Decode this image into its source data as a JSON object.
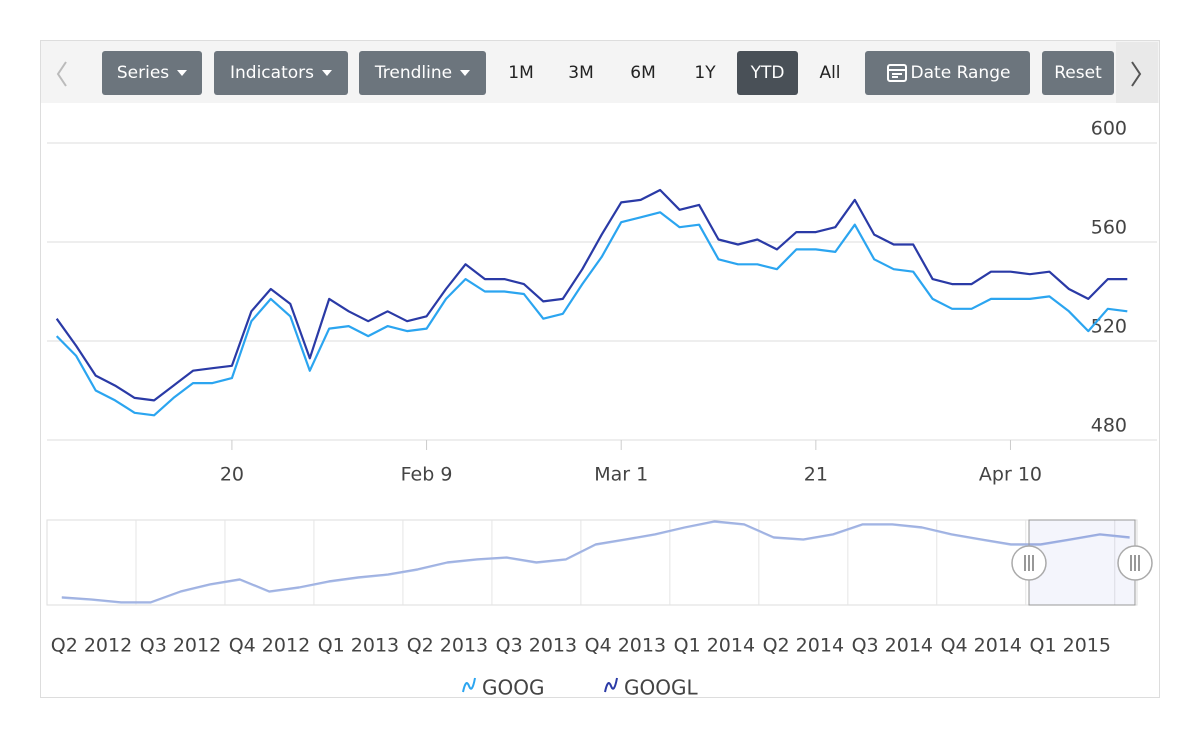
{
  "toolbar": {
    "buttons": [
      "Series",
      "Indicators",
      "Trendline",
      "1M",
      "3M",
      "6M",
      "1Y",
      "YTD",
      "All",
      "Date Range",
      "Reset"
    ]
  },
  "chart_data": [
    {
      "type": "line",
      "categories": [
        null,
        null,
        null,
        null,
        null,
        null,
        null,
        null,
        null,
        "20",
        null,
        null,
        null,
        null,
        null,
        null,
        null,
        null,
        null,
        "Feb 9",
        null,
        null,
        null,
        null,
        null,
        null,
        null,
        null,
        null,
        "Mar 1",
        null,
        null,
        null,
        null,
        null,
        null,
        null,
        null,
        null,
        "21",
        null,
        null,
        null,
        null,
        null,
        null,
        null,
        null,
        null,
        "Apr 10",
        null,
        null,
        null,
        null,
        null,
        null
      ],
      "series": [
        {
          "name": "GOOG",
          "color": "#2ba5f0",
          "values": [
            522,
            514,
            500,
            496,
            491,
            490,
            497,
            503,
            503,
            505,
            528,
            537,
            530,
            508,
            525,
            526,
            522,
            526,
            524,
            525,
            537,
            545,
            540,
            540,
            539,
            529,
            531,
            543,
            554,
            568,
            570,
            572,
            566,
            567,
            553,
            551,
            551,
            549,
            557,
            557,
            556,
            567,
            553,
            549,
            548,
            537,
            533,
            533,
            537,
            537,
            537,
            538,
            532,
            524,
            533,
            532
          ]
        },
        {
          "name": "GOOGL",
          "color": "#2a3aa6",
          "values": [
            529,
            518,
            506,
            502,
            497,
            496,
            502,
            508,
            509,
            510,
            532,
            541,
            535,
            513,
            537,
            532,
            528,
            532,
            528,
            530,
            541,
            551,
            545,
            545,
            543,
            536,
            537,
            549,
            563,
            576,
            577,
            581,
            573,
            575,
            561,
            559,
            561,
            557,
            564,
            564,
            566,
            577,
            563,
            559,
            559,
            545,
            543,
            543,
            548,
            548,
            547,
            548,
            541,
            537,
            545,
            545
          ]
        }
      ],
      "ylim": [
        480,
        600
      ],
      "yticks": [
        480,
        520,
        560,
        600
      ],
      "grid": true,
      "legend": "bottom"
    },
    {
      "type": "line",
      "categories": [
        null,
        "Q2 2012",
        null,
        null,
        "Q3 2012",
        null,
        null,
        "Q4 2012",
        null,
        null,
        "Q1 2013",
        null,
        null,
        "Q2 2013",
        null,
        null,
        "Q3 2013",
        null,
        null,
        "Q4 2013",
        null,
        null,
        "Q1 2014",
        null,
        null,
        "Q2 2014",
        null,
        null,
        "Q3 2014",
        null,
        null,
        "Q4 2014",
        null,
        null,
        "Q1 2015",
        null,
        null
      ],
      "series": [
        {
          "name": "GOOG",
          "color": "#a9bde9",
          "values": [
            307,
            299,
            288,
            288,
            330,
            358,
            377,
            330,
            346,
            369,
            385,
            396,
            416,
            443,
            455,
            462,
            443,
            455,
            513,
            532,
            552,
            579,
            602,
            591,
            540,
            532,
            552,
            591,
            591,
            579,
            552,
            532,
            513,
            513,
            532,
            552,
            540
          ]
        },
        {
          "name": "GOOGL",
          "color": "#9fb0e0",
          "values": [
            311,
            303,
            292,
            292,
            334,
            362,
            381,
            334,
            350,
            373,
            389,
            400,
            420,
            447,
            459,
            466,
            447,
            459,
            517,
            536,
            556,
            583,
            606,
            595,
            544,
            536,
            556,
            595,
            595,
            583,
            556,
            536,
            517,
            517,
            536,
            556,
            544
          ]
        }
      ],
      "ylim": [
        280,
        610
      ]
    }
  ]
}
